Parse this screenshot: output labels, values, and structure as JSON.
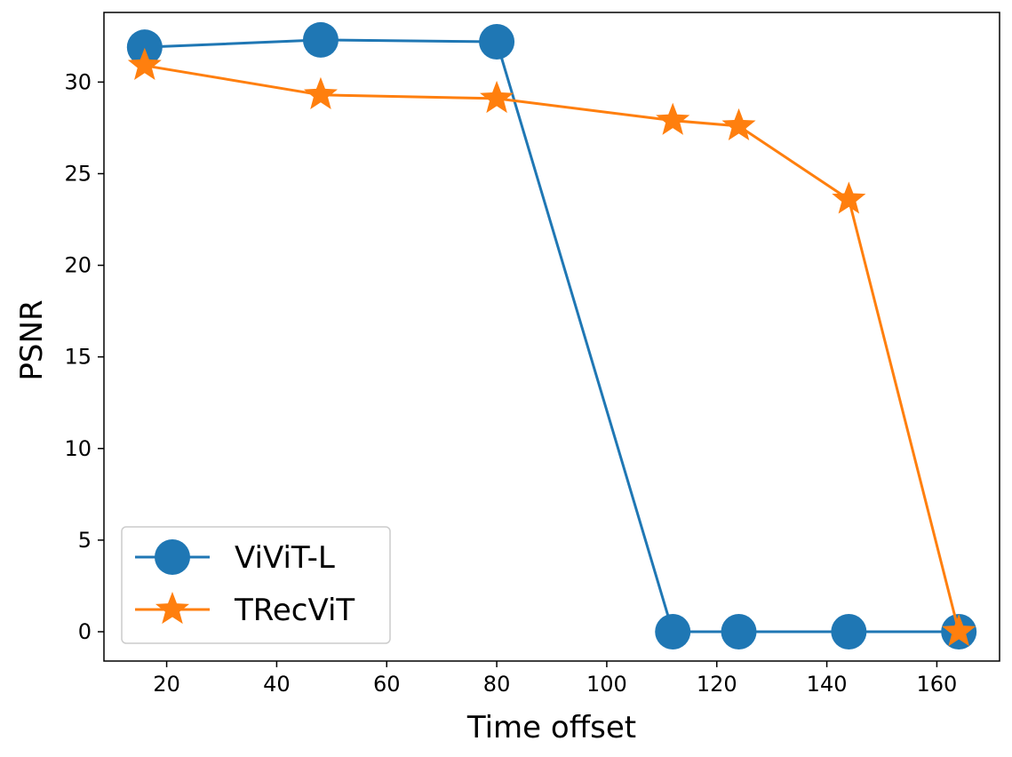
{
  "chart_data": {
    "type": "line",
    "title": "",
    "xlabel": "Time offset",
    "ylabel": "PSNR",
    "xlim": [
      8.6,
      171.4
    ],
    "ylim": [
      -1.6,
      33.8
    ],
    "xticks": [
      20,
      40,
      60,
      80,
      100,
      120,
      140,
      160
    ],
    "yticks": [
      0,
      5,
      10,
      15,
      20,
      25,
      30
    ],
    "grid": false,
    "legend_position": "lower-left",
    "series": [
      {
        "name": "ViViT-L",
        "color": "#1f77b4",
        "marker": "circle",
        "x": [
          16,
          48,
          80,
          112,
          124,
          144,
          164
        ],
        "y": [
          31.9,
          32.3,
          32.2,
          0,
          0,
          0,
          0
        ]
      },
      {
        "name": "TRecViT",
        "color": "#ff7f0e",
        "marker": "star",
        "x": [
          16,
          48,
          80,
          112,
          124,
          144,
          164
        ],
        "y": [
          30.9,
          29.3,
          29.1,
          27.9,
          27.6,
          23.6,
          0
        ]
      }
    ]
  }
}
